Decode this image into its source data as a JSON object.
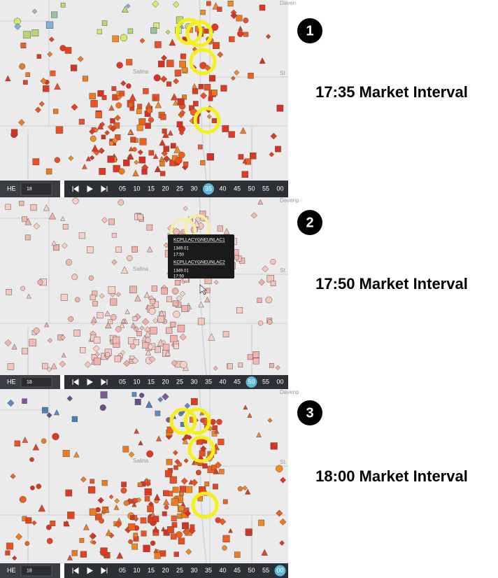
{
  "panels": [
    {
      "number": "1",
      "label": "17:35 Market Interval",
      "he": "HE",
      "he_value": "18",
      "timeline": [
        {
          "label": "05"
        },
        {
          "label": "10"
        },
        {
          "label": "15"
        },
        {
          "label": "20"
        },
        {
          "label": "25"
        },
        {
          "label": "30"
        },
        {
          "label": "35",
          "selected": true
        },
        {
          "label": "40"
        },
        {
          "label": "45"
        },
        {
          "label": "50"
        },
        {
          "label": "55"
        },
        {
          "label": "00"
        }
      ],
      "places": [
        "Salina",
        "St",
        "Daven"
      ]
    },
    {
      "number": "2",
      "label": "17:50 Market Interval",
      "he": "HE",
      "he_value": "18",
      "timeline": [
        {
          "label": "05"
        },
        {
          "label": "10"
        },
        {
          "label": "15"
        },
        {
          "label": "20"
        },
        {
          "label": "25"
        },
        {
          "label": "30"
        },
        {
          "label": "35"
        },
        {
          "label": "40"
        },
        {
          "label": "45"
        },
        {
          "label": "50",
          "selected": true
        },
        {
          "label": "55"
        },
        {
          "label": "00"
        }
      ],
      "places": [
        "Salina",
        "St.",
        "Davenp"
      ],
      "tooltip": [
        "KCPLLACYGNEUNLAC1",
        "1349.01",
        "17:50",
        "KCPLLACYGNEUNLAC2",
        "1349.01",
        "17:50"
      ]
    },
    {
      "number": "3",
      "label": "18:00 Market Interval",
      "he": "HE",
      "he_value": "18",
      "timeline": [
        {
          "label": "05"
        },
        {
          "label": "10"
        },
        {
          "label": "15"
        },
        {
          "label": "20"
        },
        {
          "label": "25"
        },
        {
          "label": "30"
        },
        {
          "label": "35"
        },
        {
          "label": "40"
        },
        {
          "label": "45"
        },
        {
          "label": "50"
        },
        {
          "label": "55"
        },
        {
          "label": "00",
          "selected": true
        }
      ],
      "places": [
        "Salina",
        "St.",
        "Davenp"
      ]
    }
  ]
}
